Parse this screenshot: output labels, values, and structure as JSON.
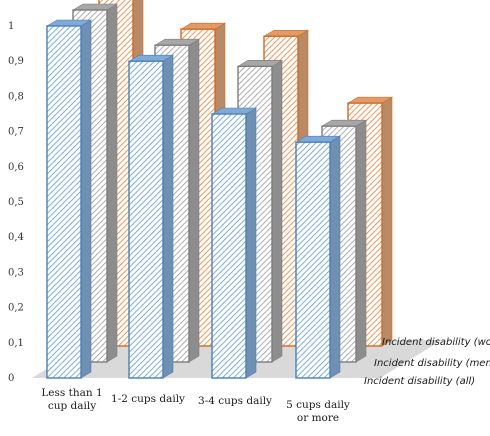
{
  "chart_data": {
    "type": "bar",
    "categories": [
      [
        "Less than 1",
        "cup daily"
      ],
      [
        "1-2 cups daily"
      ],
      [
        "3-4 cups daily"
      ],
      [
        "5 cups daily",
        "or more"
      ]
    ],
    "y_ticks": [
      "0",
      "0,1",
      "0,2",
      "0,3",
      "0,4",
      "0,5",
      "0,6",
      "0,7",
      "0,8",
      "0,9",
      "1"
    ],
    "ylim": [
      0,
      1
    ],
    "series": [
      {
        "name": "Incident disability (all)",
        "values": [
          1.0,
          0.9,
          0.75,
          0.67
        ],
        "color": "#5b9bd5"
      },
      {
        "name": "Incident disability (men)",
        "values": [
          1.0,
          0.9,
          0.84,
          0.67
        ],
        "color": "#9a9a9a"
      },
      {
        "name": "Incident disability (women)",
        "values": [
          1.0,
          0.9,
          0.88,
          0.69
        ],
        "color": "#ed7d31"
      }
    ],
    "grid": false,
    "legend": "series labels along depth axis, bottom-right",
    "projection": "3d"
  }
}
